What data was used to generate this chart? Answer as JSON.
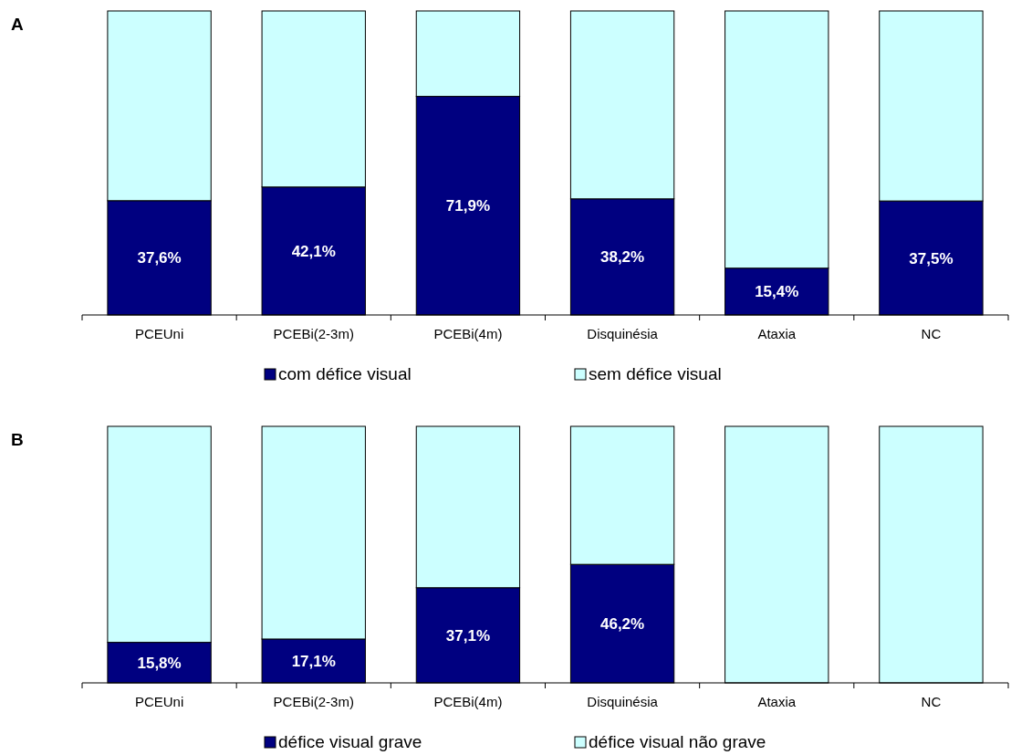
{
  "chart_data": [
    {
      "type": "bar",
      "title": "A",
      "stacked": true,
      "categories": [
        "PCEUni",
        "PCEBi(2-3m)",
        "PCEBi(4m)",
        "Disquinésia",
        "Ataxia",
        "NC"
      ],
      "ylim": [
        0,
        100
      ],
      "legend": "bottom",
      "tick_labels": "x",
      "series": [
        {
          "name": "com défice visual",
          "color": "#000080",
          "values": [
            37.6,
            42.1,
            71.9,
            38.2,
            15.4,
            37.5
          ],
          "value_labels": [
            "37,6%",
            "42,1%",
            "71,9%",
            "38,2%",
            "15,4%",
            "37,5%"
          ]
        },
        {
          "name": "sem défice visual",
          "color": "#ccffff",
          "values": [
            62.4,
            57.9,
            28.1,
            61.8,
            84.6,
            62.5
          ]
        }
      ]
    },
    {
      "type": "bar",
      "title": "B",
      "stacked": true,
      "categories": [
        "PCEUni",
        "PCEBi(2-3m)",
        "PCEBi(4m)",
        "Disquinésia",
        "Ataxia",
        "NC"
      ],
      "ylim": [
        0,
        100
      ],
      "legend": "bottom",
      "tick_labels": "x",
      "series": [
        {
          "name": "défice visual grave",
          "color": "#000080",
          "values": [
            15.8,
            17.1,
            37.1,
            46.2,
            0,
            0
          ],
          "value_labels": [
            "15,8%",
            "17,1%",
            "37,1%",
            "46,2%",
            null,
            null
          ]
        },
        {
          "name": "défice visual não grave",
          "color": "#ccffff",
          "values": [
            84.2,
            82.9,
            62.9,
            53.8,
            100,
            100
          ]
        }
      ]
    }
  ]
}
